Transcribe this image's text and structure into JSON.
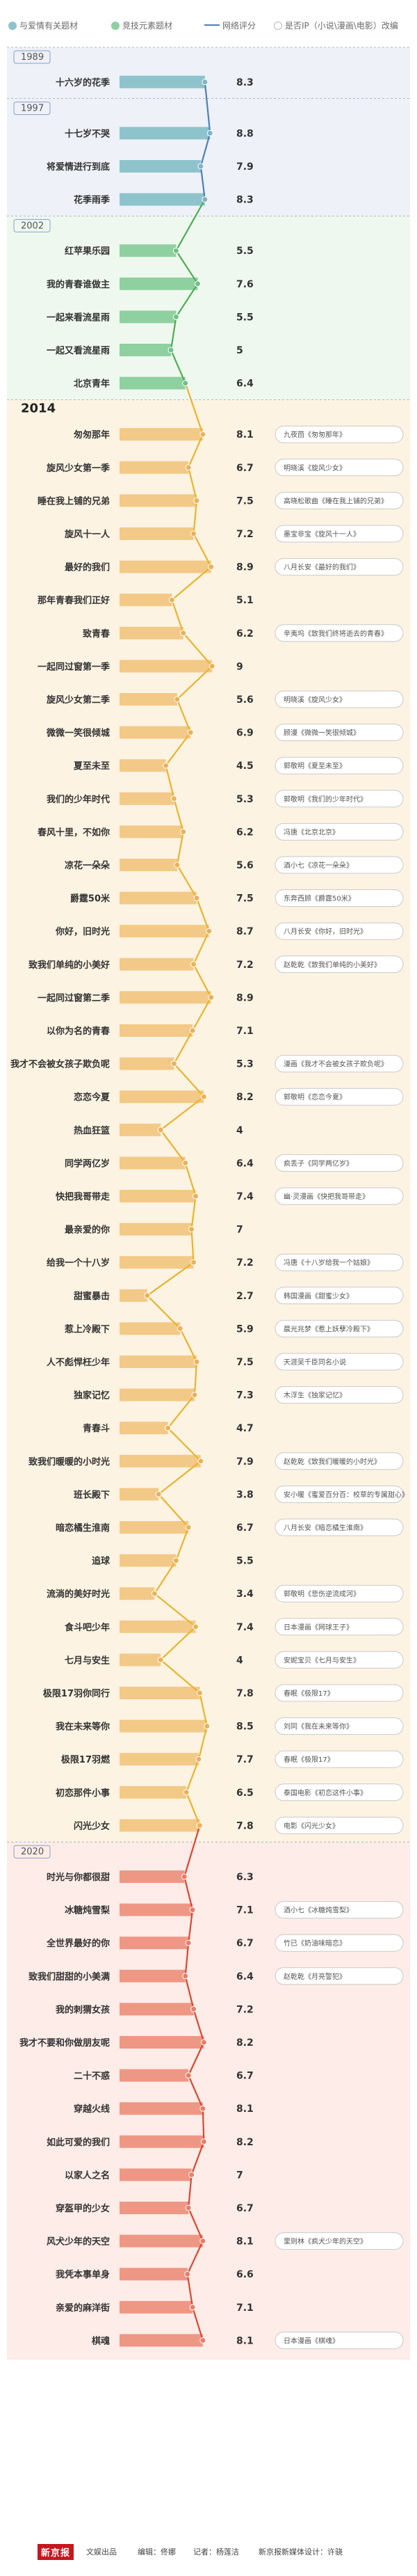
{
  "legend": {
    "love_theme": "与爱情有关题材",
    "school_theme": "竞技元素题材",
    "rating": "网络评分",
    "ip_adapt": "是否IP（小说\\漫画\\电影）改编"
  },
  "colors": {
    "blue": "#8fc3cc",
    "blue_band": "#eef1f8",
    "green": "#8fd0a0",
    "green_band": "#eff8ef",
    "orange": "#f3c987",
    "orange_band": "#fdf3e3",
    "red": "#ef9785",
    "red_band": "#fdece8",
    "line_blue": "#4f7fb8",
    "line_green": "#4caf50",
    "line_yellow": "#e9b42c",
    "line_red": "#e0452c"
  },
  "footer": {
    "logo": "新京报",
    "org": "文娱出品",
    "editor": "编辑：佟娜",
    "reporter": "记者：杨莲洁",
    "designer": "新京报新媒体设计：许骁"
  },
  "chart_data": {
    "type": "bar",
    "title": "",
    "xlabel": "",
    "ylabel": "",
    "xlim": [
      0,
      10
    ],
    "periods": [
      {
        "label": "1989",
        "theme": "blue",
        "rows": [
          {
            "title": "十六岁的花季",
            "rating": 8.3,
            "ip": ""
          }
        ]
      },
      {
        "label": "1997",
        "theme": "blue",
        "rows": [
          {
            "title": "十七岁不哭",
            "rating": 8.8,
            "ip": ""
          },
          {
            "title": "将爱情进行到底",
            "rating": 7.9,
            "ip": ""
          },
          {
            "title": "花季雨季",
            "rating": 8.3,
            "ip": ""
          }
        ]
      },
      {
        "label": "2002",
        "theme": "green",
        "rows": [
          {
            "title": "红苹果乐园",
            "rating": 5.5,
            "ip": ""
          },
          {
            "title": "我的青春谁做主",
            "rating": 7.6,
            "ip": ""
          },
          {
            "title": "一起来看流星雨",
            "rating": 5.5,
            "ip": ""
          },
          {
            "title": "一起又看流星雨",
            "rating": 5,
            "ip": ""
          },
          {
            "title": "北京青年",
            "rating": 6.4,
            "ip": ""
          }
        ]
      },
      {
        "label": "2014",
        "theme": "orange",
        "bold": true,
        "rows": [
          {
            "title": "匆匆那年",
            "rating": 8.1,
            "ip": "九夜茴《匆匆那年》"
          },
          {
            "title": "旋风少女第一季",
            "rating": 6.7,
            "ip": "明晓溪《旋风少女》"
          },
          {
            "title": "睡在我上铺的兄弟",
            "rating": 7.5,
            "ip": "高晓松歌曲《睡在我上铺的兄弟》"
          },
          {
            "title": "旋风十一人",
            "rating": 7.2,
            "ip": "墨宝非宝《旋风十一人》"
          },
          {
            "title": "最好的我们",
            "rating": 8.9,
            "ip": "八月长安《最好的我们》"
          },
          {
            "title": "那年青春我们正好",
            "rating": 5.1,
            "ip": ""
          },
          {
            "title": "致青春",
            "rating": 6.2,
            "ip": "辛夷坞《致我们终将逝去的青春》"
          },
          {
            "title": "一起同过窗第一季",
            "rating": 9,
            "ip": ""
          },
          {
            "title": "旋风少女第二季",
            "rating": 5.6,
            "ip": "明晓溪《旋风少女》"
          },
          {
            "title": "微微一笑很倾城",
            "rating": 6.9,
            "ip": "顾漫《微微一笑很倾城》"
          },
          {
            "title": "夏至未至",
            "rating": 4.5,
            "ip": "郭敬明《夏至未至》"
          },
          {
            "title": "我们的少年时代",
            "rating": 5.3,
            "ip": "郭敬明《我们的少年时代》"
          },
          {
            "title": "春风十里，不如你",
            "rating": 6.2,
            "ip": "冯唐《北京北京》"
          },
          {
            "title": "凉花一朵朵",
            "rating": 5.6,
            "ip": "酒小七《凉花一朵朵》"
          },
          {
            "title": "爵霆50米",
            "rating": 7.5,
            "ip": "东奔西顾《爵霆50米》"
          },
          {
            "title": "你好，旧时光",
            "rating": 8.7,
            "ip": "八月长安《你好，旧时光》"
          },
          {
            "title": "致我们单纯的小美好",
            "rating": 7.2,
            "ip": "赵乾乾《致我们单纯的小美好》"
          },
          {
            "title": "一起同过窗第二季",
            "rating": 8.9,
            "ip": ""
          },
          {
            "title": "以你为名的青春",
            "rating": 7.1,
            "ip": ""
          },
          {
            "title": "我才不会被女孩子欺负呢",
            "rating": 5.3,
            "ip": "漫画《我才不会被女孩子欺负呢》"
          },
          {
            "title": "恋恋今夏",
            "rating": 8.2,
            "ip": "郭敬明《恋恋今夏》"
          },
          {
            "title": "热血狂篮",
            "rating": 4,
            "ip": ""
          },
          {
            "title": "同学两亿岁",
            "rating": 6.4,
            "ip": "疯丢子《同学两亿岁》"
          },
          {
            "title": "快把我哥带走",
            "rating": 7.4,
            "ip": "幽·灵漫画《快把我哥带走》"
          },
          {
            "title": "最亲爱的你",
            "rating": 7,
            "ip": ""
          },
          {
            "title": "给我一个十八岁",
            "rating": 7.2,
            "ip": "冯唐《十八岁给我一个姑娘》"
          },
          {
            "title": "甜蜜暴击",
            "rating": 2.7,
            "ip": "韩国漫画《甜蜜少女》"
          },
          {
            "title": "惹上冷殿下",
            "rating": 5.9,
            "ip": "晨光兆梦《惹上妖孽冷殿下》"
          },
          {
            "title": "人不彪悍枉少年",
            "rating": 7.5,
            "ip": "天涯吴千臣同名小说"
          },
          {
            "title": "独家记忆",
            "rating": 7.3,
            "ip": "木浮生《独家记忆》"
          },
          {
            "title": "青春斗",
            "rating": 4.7,
            "ip": ""
          },
          {
            "title": "致我们暖暖的小时光",
            "rating": 7.9,
            "ip": "赵乾乾《致我们暖暖的小时光》"
          },
          {
            "title": "班长殿下",
            "rating": 3.8,
            "ip": "安小暖《蜜爱百分百：校草的专属甜心》"
          },
          {
            "title": "暗恋橘生淮南",
            "rating": 6.7,
            "ip": "八月长安《暗恋橘生淮南》"
          },
          {
            "title": "追球",
            "rating": 5.5,
            "ip": ""
          },
          {
            "title": "流淌的美好时光",
            "rating": 3.4,
            "ip": "郭敬明《悲伤逆流成河》"
          },
          {
            "title": "食斗吧少年",
            "rating": 7.4,
            "ip": "日本漫画《网球王子》"
          },
          {
            "title": "七月与安生",
            "rating": 4,
            "ip": "安妮宝贝《七月与安生》"
          },
          {
            "title": "极限17羽你同行",
            "rating": 7.8,
            "ip": "春眠《极限17》"
          },
          {
            "title": "我在未来等你",
            "rating": 8.5,
            "ip": "刘同《我在未来等你》"
          },
          {
            "title": "极限17羽燃",
            "rating": 7.7,
            "ip": "春眠《极限17》"
          },
          {
            "title": "初恋那件小事",
            "rating": 6.5,
            "ip": "泰国电影《初恋这件小事》"
          },
          {
            "title": "闪光少女",
            "rating": 7.8,
            "ip": "电影《闪光少女》"
          }
        ]
      },
      {
        "label": "2020",
        "theme": "red",
        "rows": [
          {
            "title": "时光与你都很甜",
            "rating": 6.3,
            "ip": ""
          },
          {
            "title": "冰糖炖雪梨",
            "rating": 7.1,
            "ip": "酒小七《冰糖炖雪梨》"
          },
          {
            "title": "全世界最好的你",
            "rating": 6.7,
            "ip": "竹已《奶油味暗恋》"
          },
          {
            "title": "致我们甜甜的小美满",
            "rating": 6.4,
            "ip": "赵乾乾《月亮警犯》"
          },
          {
            "title": "我的刺猬女孩",
            "rating": 7.2,
            "ip": ""
          },
          {
            "title": "我才不要和你做朋友呢",
            "rating": 8.2,
            "ip": ""
          },
          {
            "title": "二十不惑",
            "rating": 6.7,
            "ip": ""
          },
          {
            "title": "穿越火线",
            "rating": 8.1,
            "ip": ""
          },
          {
            "title": "如此可爱的我们",
            "rating": 8.2,
            "ip": ""
          },
          {
            "title": "以家人之名",
            "rating": 7,
            "ip": ""
          },
          {
            "title": "穿盔甲的少女",
            "rating": 6.7,
            "ip": ""
          },
          {
            "title": "风犬少年的天空",
            "rating": 8.1,
            "ip": "里则林《疯犬少年的天空》"
          },
          {
            "title": "我凭本事单身",
            "rating": 6.6,
            "ip": ""
          },
          {
            "title": "亲爱的麻洋街",
            "rating": 7.1,
            "ip": ""
          },
          {
            "title": "棋魂",
            "rating": 8.1,
            "ip": "日本漫画《棋魂》"
          }
        ]
      }
    ]
  }
}
